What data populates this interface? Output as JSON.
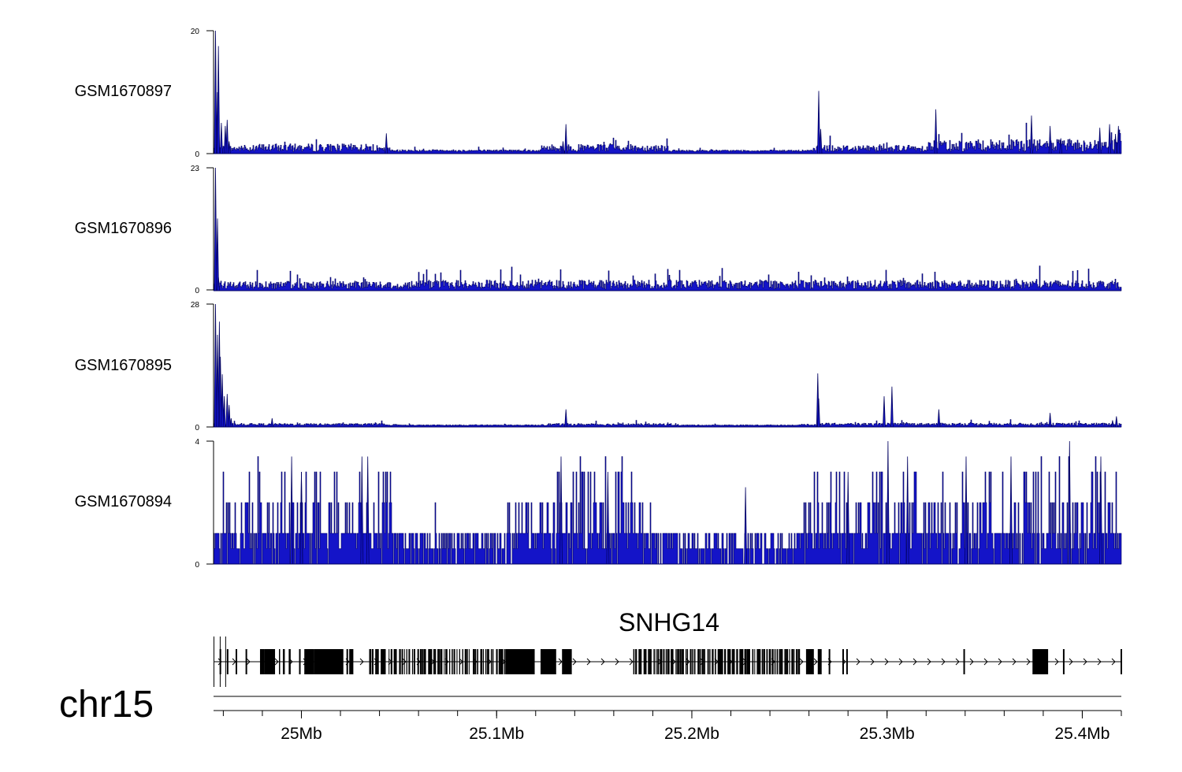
{
  "chart_data": {
    "type": "genome-tracks",
    "chromosome": "chr15",
    "x_range_mb": [
      24.955,
      25.42
    ],
    "x_ticks": [
      {
        "label": "25Mb",
        "value": 25.0
      },
      {
        "label": "25.1Mb",
        "value": 25.1
      },
      {
        "label": "25.2Mb",
        "value": 25.2
      },
      {
        "label": "25.3Mb",
        "value": 25.3
      },
      {
        "label": "25.4Mb",
        "value": 25.4
      }
    ],
    "colors": {
      "signal": "#1414c8",
      "signal_dark": "#000060",
      "gene": "#000000"
    },
    "tracks": [
      {
        "name": "GSM1670897",
        "ymax": 20,
        "ymax_label": "20",
        "ymin_label": "0",
        "baseline": 0.3,
        "peaks": [
          {
            "x": 24.956,
            "h": 20
          },
          {
            "x": 24.957,
            "h": 10
          },
          {
            "x": 24.9575,
            "h": 17.5
          },
          {
            "x": 24.959,
            "h": 5
          },
          {
            "x": 24.961,
            "h": 4.5
          },
          {
            "x": 24.962,
            "h": 5.5
          },
          {
            "x": 24.963,
            "h": 2
          },
          {
            "x": 25.0435,
            "h": 3.3
          },
          {
            "x": 25.1355,
            "h": 4.8
          },
          {
            "x": 25.134,
            "h": 2
          },
          {
            "x": 25.265,
            "h": 10.2
          },
          {
            "x": 25.266,
            "h": 4
          },
          {
            "x": 25.325,
            "h": 7.2
          },
          {
            "x": 25.374,
            "h": 6.2
          },
          {
            "x": 25.3835,
            "h": 4.5
          },
          {
            "x": 25.389,
            "h": 2.5
          },
          {
            "x": 25.409,
            "h": 4.2
          },
          {
            "x": 25.414,
            "h": 4.8
          },
          {
            "x": 25.4185,
            "h": 4.5
          },
          {
            "x": 25.417,
            "h": 3.2
          }
        ],
        "noise": [
          {
            "from": 24.955,
            "to": 24.976,
            "level": 1.0
          },
          {
            "from": 24.976,
            "to": 25.038,
            "level": 1.3
          },
          {
            "from": 25.038,
            "to": 25.046,
            "level": 0.7
          },
          {
            "from": 25.046,
            "to": 25.123,
            "level": 0.35
          },
          {
            "from": 25.123,
            "to": 25.188,
            "level": 1.2
          },
          {
            "from": 25.188,
            "to": 25.262,
            "level": 0.3
          },
          {
            "from": 25.262,
            "to": 25.32,
            "level": 1.1
          },
          {
            "from": 25.32,
            "to": 25.42,
            "level": 2.0
          }
        ]
      },
      {
        "name": "GSM1670896",
        "ymax": 23,
        "ymax_label": "23",
        "ymin_label": "0",
        "baseline": 0.3,
        "peaks": [
          {
            "x": 24.956,
            "h": 23
          },
          {
            "x": 24.957,
            "h": 13.5
          },
          {
            "x": 24.9575,
            "h": 2.5
          }
        ],
        "noise": [
          {
            "from": 24.955,
            "to": 25.046,
            "level": 1.5
          },
          {
            "from": 25.046,
            "to": 25.052,
            "level": 0.6
          },
          {
            "from": 25.052,
            "to": 25.42,
            "level": 1.7
          }
        ]
      },
      {
        "name": "GSM1670895",
        "ymax": 28,
        "ymax_label": "28",
        "ymin_label": "0",
        "baseline": 0.3,
        "peaks": [
          {
            "x": 24.956,
            "h": 28
          },
          {
            "x": 24.957,
            "h": 21
          },
          {
            "x": 24.958,
            "h": 24
          },
          {
            "x": 24.9585,
            "h": 16
          },
          {
            "x": 24.9595,
            "h": 12
          },
          {
            "x": 24.9605,
            "h": 7
          },
          {
            "x": 24.962,
            "h": 7.5
          },
          {
            "x": 24.963,
            "h": 5
          },
          {
            "x": 24.964,
            "h": 2
          },
          {
            "x": 24.985,
            "h": 2
          },
          {
            "x": 25.1355,
            "h": 4.0
          },
          {
            "x": 25.2645,
            "h": 12.2
          },
          {
            "x": 25.265,
            "h": 6.5
          },
          {
            "x": 25.2985,
            "h": 7
          },
          {
            "x": 25.3025,
            "h": 9.2
          },
          {
            "x": 25.3265,
            "h": 4.0
          },
          {
            "x": 25.3835,
            "h": 3.2
          },
          {
            "x": 25.4175,
            "h": 2.4
          },
          {
            "x": 25.4155,
            "h": 1.5
          }
        ],
        "noise": [
          {
            "from": 24.955,
            "to": 25.042,
            "level": 0.5
          },
          {
            "from": 25.042,
            "to": 25.122,
            "level": 0.2
          },
          {
            "from": 25.122,
            "to": 25.19,
            "level": 0.5
          },
          {
            "from": 25.19,
            "to": 25.262,
            "level": 0.2
          },
          {
            "from": 25.262,
            "to": 25.42,
            "level": 0.6
          }
        ]
      },
      {
        "name": "GSM1670894",
        "ymax": 4,
        "ymax_label": "4",
        "ymin_label": "0",
        "baseline": 0.5,
        "peaks": [
          {
            "x": 25.3005,
            "h": 4
          },
          {
            "x": 25.3935,
            "h": 4
          },
          {
            "x": 24.995,
            "h": 3.5
          },
          {
            "x": 25.031,
            "h": 3.5
          },
          {
            "x": 25.034,
            "h": 3.5
          },
          {
            "x": 25.133,
            "h": 3.5
          },
          {
            "x": 25.3405,
            "h": 3.5
          },
          {
            "x": 25.3635,
            "h": 3.5
          },
          {
            "x": 25.4095,
            "h": 3.5
          },
          {
            "x": 25.0,
            "h": 3
          },
          {
            "x": 25.0,
            "h": 3
          },
          {
            "x": 25.157,
            "h": 3
          },
          {
            "x": 25.2275,
            "h": 2.5
          },
          {
            "x": 25.28,
            "h": 3
          },
          {
            "x": 25.3105,
            "h": 3.5
          }
        ],
        "noise": [
          {
            "from": 24.955,
            "to": 25.047,
            "level": 3.0
          },
          {
            "from": 25.047,
            "to": 25.105,
            "level": 1.4
          },
          {
            "from": 25.105,
            "to": 25.18,
            "level": 3.0
          },
          {
            "from": 25.18,
            "to": 25.257,
            "level": 1.3
          },
          {
            "from": 25.257,
            "to": 25.42,
            "level": 3.0
          }
        ]
      }
    ],
    "gene_track": {
      "gene_name": "SNHG14",
      "strand": "+",
      "exon_blocks": [
        {
          "start": 24.9788,
          "end": 24.981
        },
        {
          "start": 24.981,
          "end": 24.9865
        },
        {
          "start": 24.9885,
          "end": 24.989
        },
        {
          "start": 24.9905,
          "end": 24.9915
        },
        {
          "start": 24.9935,
          "end": 24.9945
        },
        {
          "start": 25.0015,
          "end": 25.0065
        },
        {
          "start": 25.0065,
          "end": 25.0215
        },
        {
          "start": 25.0245,
          "end": 25.026
        },
        {
          "start": 25.1045,
          "end": 25.1195
        },
        {
          "start": 25.1225,
          "end": 25.1305
        },
        {
          "start": 25.1335,
          "end": 25.1385
        },
        {
          "start": 25.2585,
          "end": 25.2625
        },
        {
          "start": 25.2645,
          "end": 25.2665
        },
        {
          "start": 25.3745,
          "end": 25.3825
        }
      ],
      "exon_dense_ranges": [
        {
          "start": 25.0345,
          "end": 25.1045,
          "count": 52
        },
        {
          "start": 25.1695,
          "end": 25.2555,
          "count": 68
        }
      ],
      "single_exons": [
        24.9585,
        24.9622,
        24.9667,
        24.9718,
        24.9992,
        25.0235,
        25.0262,
        25.2705,
        25.2775,
        25.2795,
        25.3395,
        25.3905,
        25.42
      ],
      "extra_start_lines": [
        24.9552,
        24.9552,
        24.9552
      ]
    }
  }
}
